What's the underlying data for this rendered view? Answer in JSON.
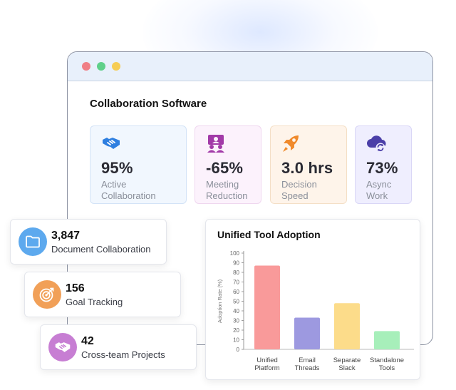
{
  "window": {
    "title": "Collaboration Software",
    "controls": [
      "close",
      "maximize",
      "minimize"
    ]
  },
  "stats": [
    {
      "value": "95%",
      "label": "Active\nCollaboration",
      "icon": "handshake-icon",
      "color": "#2f7fe0"
    },
    {
      "value": "-65%",
      "label": "Meeting\nReduction",
      "icon": "video-meeting-icon",
      "color": "#a23aa8"
    },
    {
      "value": "3.0 hrs",
      "label": "Decision\nSpeed",
      "icon": "rocket-icon",
      "color": "#f08a2c"
    },
    {
      "value": "73%",
      "label": "Async\nWork",
      "icon": "cloud-sync-icon",
      "color": "#4b3fa8"
    }
  ],
  "metrics": [
    {
      "value": "3,847",
      "label": "Document Collaboration",
      "icon": "folder-icon",
      "color": "#5da9ee"
    },
    {
      "value": "156",
      "label": "Goal Tracking",
      "icon": "target-icon",
      "color": "#f1a058"
    },
    {
      "value": "42",
      "label": "Cross-team Projects",
      "icon": "handshake-icon",
      "color": "#c77ed3"
    }
  ],
  "chart": {
    "title": "Unified Tool Adoption"
  },
  "chart_data": {
    "type": "bar",
    "title": "Unified Tool Adoption",
    "categories": [
      "Unified Platform",
      "Email Threads",
      "Separate Slack",
      "Standalone Tools"
    ],
    "category_lines": [
      [
        "Unified",
        "Platform"
      ],
      [
        "Email",
        "Threads"
      ],
      [
        "Separate",
        "Slack"
      ],
      [
        "Standalone",
        "Tools"
      ]
    ],
    "values": [
      87,
      33,
      48,
      19
    ],
    "colors": [
      "#f99a9a",
      "#9d99e0",
      "#fcdc8a",
      "#a7efba"
    ],
    "ylabel": "Adoption Rate (%)",
    "xlabel": "",
    "ylim": [
      0,
      100
    ],
    "yticks": [
      0,
      10,
      20,
      30,
      40,
      50,
      60,
      70,
      80,
      90,
      100
    ],
    "grid": false,
    "legend": "none"
  }
}
